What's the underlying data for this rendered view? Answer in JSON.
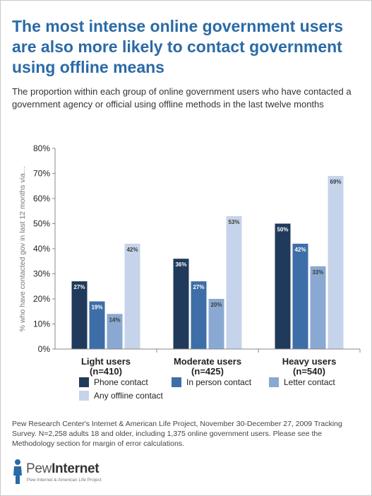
{
  "header": {
    "title": "The most intense online government users are also more likely to contact government using offline means",
    "subtitle": "The proportion within each group of online government users who have contacted a government agency or official using offline methods in the last twelve months"
  },
  "chart_data": {
    "type": "bar",
    "categories": [
      [
        "Light users",
        "(n=410)"
      ],
      [
        "Moderate users",
        "(n=425)"
      ],
      [
        "Heavy users",
        "(n=540)"
      ]
    ],
    "series": [
      {
        "name": "Phone contact",
        "values": [
          27,
          36,
          50
        ],
        "color": "#1f3a5a",
        "labels": [
          "27%",
          "36%",
          "50%"
        ]
      },
      {
        "name": "In person contact",
        "values": [
          19,
          27,
          42
        ],
        "color": "#3e6ea8",
        "labels": [
          "19%",
          "27%",
          "42%"
        ]
      },
      {
        "name": "Letter contact",
        "values": [
          14,
          20,
          33
        ],
        "color": "#8aa9d2",
        "labels": [
          "14%",
          "20%",
          "33%"
        ]
      },
      {
        "name": "Any offline contact",
        "values": [
          42,
          53,
          69
        ],
        "color": "#c5d4ea",
        "labels": [
          "42%",
          "53%",
          "69%"
        ]
      }
    ],
    "ylabel": "% who have contacted gov in last 12 months via…",
    "ylim": [
      0,
      80
    ],
    "yticks": [
      0,
      10,
      20,
      30,
      40,
      50,
      60,
      70,
      80
    ],
    "ytick_labels": [
      "0%",
      "10%",
      "20%",
      "30%",
      "40%",
      "50%",
      "60%",
      "70%",
      "80%"
    ],
    "grid": false,
    "legend_position": "bottom"
  },
  "footnote": "Pew Research Center's Internet & American Life Project, November 30-December 27, 2009 Tracking Survey. N=2,258 adults 18 and older, including 1,375 online government users. Please see the Methodology section for margin of error calculations.",
  "logo": {
    "name_light": "Pew",
    "name_bold": "Internet",
    "tagline": "Pew Internet & American Life Project"
  }
}
